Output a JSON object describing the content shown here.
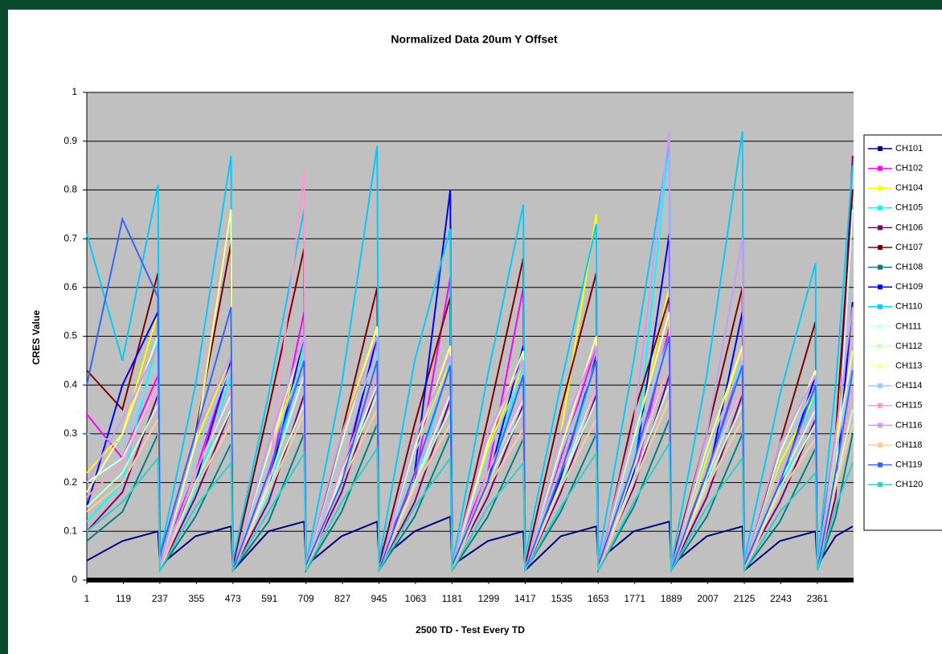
{
  "chart_data": {
    "type": "line",
    "title": "Normalized Data 20um Y Offset",
    "x_label": "2500 TD - Test Every TD",
    "y_label": "CRES Value",
    "x": [
      1,
      116,
      231,
      237,
      352,
      467,
      473,
      588,
      703,
      709,
      824,
      939,
      945,
      1060,
      1175,
      1181,
      1296,
      1411,
      1417,
      1532,
      1647,
      1653,
      1768,
      1883,
      1889,
      2004,
      2119,
      2125,
      2240,
      2355,
      2361,
      2420,
      2475
    ],
    "xlim": [
      1,
      2478
    ],
    "xticks": [
      1,
      119,
      237,
      355,
      473,
      591,
      709,
      827,
      945,
      1063,
      1181,
      1299,
      1417,
      1535,
      1653,
      1771,
      1889,
      2007,
      2125,
      2243,
      2361
    ],
    "ylim": [
      0,
      1
    ],
    "yticks": [
      0,
      0.1,
      0.2,
      0.3,
      0.4,
      0.5,
      0.6,
      0.7,
      0.8,
      0.9,
      1
    ],
    "grid": true,
    "legend": "right",
    "series": [
      {
        "name": "CH101",
        "color": "#000080",
        "values": [
          0.04,
          0.08,
          0.1,
          0.03,
          0.09,
          0.11,
          0.02,
          0.1,
          0.12,
          0.03,
          0.09,
          0.12,
          0.04,
          0.1,
          0.13,
          0.03,
          0.08,
          0.1,
          0.02,
          0.09,
          0.11,
          0.04,
          0.1,
          0.12,
          0.03,
          0.09,
          0.11,
          0.02,
          0.08,
          0.1,
          0.03,
          0.09,
          0.11
        ]
      },
      {
        "name": "CH102",
        "color": "#ff00ff",
        "values": [
          0.34,
          0.25,
          0.42,
          0.04,
          0.22,
          0.45,
          0.03,
          0.2,
          0.55,
          0.02,
          0.21,
          0.5,
          0.05,
          0.2,
          0.62,
          0.04,
          0.22,
          0.6,
          0.03,
          0.25,
          0.48,
          0.04,
          0.2,
          0.52,
          0.03,
          0.22,
          0.45,
          0.02,
          0.2,
          0.4,
          0.03,
          0.2,
          0.57
        ]
      },
      {
        "name": "CH104",
        "color": "#ffff00",
        "values": [
          0.22,
          0.3,
          0.55,
          0.03,
          0.28,
          0.46,
          0.02,
          0.25,
          0.48,
          0.03,
          0.3,
          0.52,
          0.02,
          0.26,
          0.45,
          0.03,
          0.27,
          0.44,
          0.02,
          0.3,
          0.75,
          0.03,
          0.28,
          0.6,
          0.02,
          0.25,
          0.48,
          0.03,
          0.24,
          0.38,
          0.02,
          0.25,
          0.78
        ]
      },
      {
        "name": "CH105",
        "color": "#00ffff",
        "values": [
          0.12,
          0.2,
          0.5,
          0.02,
          0.18,
          0.42,
          0.03,
          0.17,
          0.48,
          0.02,
          0.2,
          0.5,
          0.03,
          0.19,
          0.45,
          0.02,
          0.2,
          0.44,
          0.03,
          0.18,
          0.46,
          0.02,
          0.22,
          0.9,
          0.03,
          0.2,
          0.45,
          0.02,
          0.18,
          0.38,
          0.03,
          0.19,
          0.77
        ]
      },
      {
        "name": "CH106",
        "color": "#800080",
        "values": [
          0.1,
          0.18,
          0.38,
          0.02,
          0.17,
          0.35,
          0.02,
          0.16,
          0.38,
          0.03,
          0.18,
          0.4,
          0.02,
          0.16,
          0.37,
          0.03,
          0.17,
          0.36,
          0.02,
          0.18,
          0.38,
          0.03,
          0.19,
          0.42,
          0.02,
          0.17,
          0.38,
          0.03,
          0.16,
          0.33,
          0.02,
          0.17,
          0.87
        ]
      },
      {
        "name": "CH107",
        "color": "#800000",
        "values": [
          0.43,
          0.35,
          0.63,
          0.03,
          0.3,
          0.69,
          0.03,
          0.35,
          0.68,
          0.02,
          0.3,
          0.6,
          0.03,
          0.32,
          0.58,
          0.02,
          0.33,
          0.66,
          0.03,
          0.35,
          0.63,
          0.02,
          0.34,
          0.58,
          0.03,
          0.3,
          0.6,
          0.02,
          0.28,
          0.53,
          0.03,
          0.3,
          0.8
        ]
      },
      {
        "name": "CH108",
        "color": "#008080",
        "values": [
          0.08,
          0.14,
          0.3,
          0.02,
          0.13,
          0.28,
          0.02,
          0.12,
          0.3,
          0.02,
          0.14,
          0.32,
          0.02,
          0.13,
          0.3,
          0.02,
          0.13,
          0.29,
          0.02,
          0.14,
          0.3,
          0.02,
          0.15,
          0.33,
          0.02,
          0.13,
          0.3,
          0.02,
          0.12,
          0.27,
          0.02,
          0.13,
          0.3
        ]
      },
      {
        "name": "CH109",
        "color": "#0000ff",
        "values": [
          0.15,
          0.4,
          0.55,
          0.03,
          0.2,
          0.45,
          0.02,
          0.19,
          0.5,
          0.03,
          0.2,
          0.5,
          0.02,
          0.22,
          0.8,
          0.03,
          0.2,
          0.48,
          0.02,
          0.21,
          0.46,
          0.03,
          0.22,
          0.71,
          0.02,
          0.2,
          0.55,
          0.03,
          0.19,
          0.42,
          0.02,
          0.2,
          0.57
        ]
      },
      {
        "name": "CH110",
        "color": "#00ccff",
        "values": [
          0.71,
          0.45,
          0.81,
          0.05,
          0.4,
          0.87,
          0.04,
          0.38,
          0.76,
          0.03,
          0.4,
          0.89,
          0.04,
          0.45,
          0.72,
          0.03,
          0.42,
          0.77,
          0.05,
          0.4,
          0.73,
          0.04,
          0.45,
          0.9,
          0.03,
          0.42,
          0.92,
          0.04,
          0.38,
          0.65,
          0.03,
          0.4,
          0.85
        ]
      },
      {
        "name": "CH111",
        "color": "#ccffff",
        "values": [
          0.2,
          0.25,
          0.4,
          0.02,
          0.22,
          0.38,
          0.02,
          0.2,
          0.42,
          0.02,
          0.22,
          0.4,
          0.02,
          0.2,
          0.38,
          0.02,
          0.22,
          0.37,
          0.02,
          0.2,
          0.4,
          0.02,
          0.23,
          0.45,
          0.02,
          0.21,
          0.4,
          0.02,
          0.2,
          0.35,
          0.02,
          0.2,
          0.76
        ]
      },
      {
        "name": "CH112",
        "color": "#ccffcc",
        "values": [
          0.15,
          0.22,
          0.36,
          0.02,
          0.2,
          0.35,
          0.02,
          0.19,
          0.36,
          0.02,
          0.21,
          0.38,
          0.02,
          0.2,
          0.35,
          0.02,
          0.2,
          0.35,
          0.02,
          0.2,
          0.37,
          0.02,
          0.21,
          0.4,
          0.02,
          0.2,
          0.36,
          0.02,
          0.19,
          0.32,
          0.02,
          0.2,
          0.35
        ]
      },
      {
        "name": "CH113",
        "color": "#ffff99",
        "values": [
          0.18,
          0.3,
          0.5,
          0.02,
          0.28,
          0.76,
          0.02,
          0.26,
          0.5,
          0.02,
          0.28,
          0.52,
          0.02,
          0.27,
          0.48,
          0.02,
          0.28,
          0.47,
          0.02,
          0.27,
          0.5,
          0.02,
          0.29,
          0.55,
          0.02,
          0.27,
          0.48,
          0.02,
          0.26,
          0.43,
          0.02,
          0.27,
          0.47
        ]
      },
      {
        "name": "CH114",
        "color": "#99ccff",
        "values": [
          0.3,
          0.28,
          0.45,
          0.02,
          0.26,
          0.44,
          0.02,
          0.25,
          0.46,
          0.02,
          0.27,
          0.47,
          0.02,
          0.26,
          0.44,
          0.02,
          0.26,
          0.43,
          0.02,
          0.26,
          0.45,
          0.02,
          0.28,
          0.5,
          0.02,
          0.26,
          0.45,
          0.02,
          0.25,
          0.4,
          0.02,
          0.26,
          0.44
        ]
      },
      {
        "name": "CH115",
        "color": "#ff99cc",
        "values": [
          0.17,
          0.24,
          0.4,
          0.02,
          0.22,
          0.39,
          0.02,
          0.21,
          0.84,
          0.02,
          0.23,
          0.42,
          0.02,
          0.22,
          0.39,
          0.02,
          0.22,
          0.38,
          0.02,
          0.22,
          0.4,
          0.02,
          0.24,
          0.45,
          0.02,
          0.22,
          0.4,
          0.02,
          0.21,
          0.36,
          0.02,
          0.22,
          0.39
        ]
      },
      {
        "name": "CH116",
        "color": "#cc99ff",
        "values": [
          0.2,
          0.33,
          0.48,
          0.03,
          0.3,
          0.46,
          0.02,
          0.28,
          0.5,
          0.03,
          0.3,
          0.5,
          0.02,
          0.29,
          0.46,
          0.03,
          0.3,
          0.45,
          0.02,
          0.3,
          0.48,
          0.03,
          0.32,
          0.92,
          0.02,
          0.3,
          0.7,
          0.03,
          0.28,
          0.42,
          0.02,
          0.3,
          0.56
        ]
      },
      {
        "name": "CH118",
        "color": "#ffcc99",
        "values": [
          0.14,
          0.2,
          0.33,
          0.02,
          0.19,
          0.32,
          0.02,
          0.18,
          0.34,
          0.02,
          0.2,
          0.35,
          0.02,
          0.19,
          0.32,
          0.02,
          0.19,
          0.31,
          0.02,
          0.19,
          0.33,
          0.02,
          0.2,
          0.37,
          0.02,
          0.19,
          0.33,
          0.02,
          0.18,
          0.29,
          0.02,
          0.19,
          0.32
        ]
      },
      {
        "name": "CH119",
        "color": "#3366ff",
        "values": [
          0.4,
          0.74,
          0.58,
          0.05,
          0.3,
          0.56,
          0.02,
          0.22,
          0.45,
          0.03,
          0.2,
          0.45,
          0.02,
          0.22,
          0.44,
          0.03,
          0.2,
          0.42,
          0.02,
          0.22,
          0.45,
          0.03,
          0.24,
          0.5,
          0.02,
          0.22,
          0.44,
          0.03,
          0.2,
          0.4,
          0.02,
          0.22,
          0.43
        ]
      },
      {
        "name": "CH120",
        "color": "#33cccc",
        "values": [
          0.1,
          0.16,
          0.25,
          0.02,
          0.15,
          0.24,
          0.02,
          0.14,
          0.26,
          0.02,
          0.16,
          0.27,
          0.02,
          0.15,
          0.25,
          0.02,
          0.15,
          0.24,
          0.02,
          0.15,
          0.26,
          0.02,
          0.16,
          0.28,
          0.02,
          0.15,
          0.25,
          0.02,
          0.14,
          0.22,
          0.02,
          0.15,
          0.24
        ]
      }
    ]
  }
}
